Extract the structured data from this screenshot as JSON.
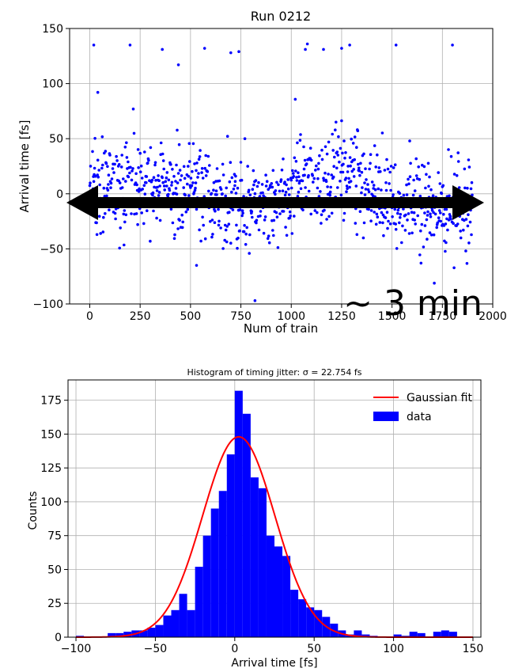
{
  "chart_data": [
    {
      "type": "scatter",
      "title": "Run 0212",
      "xlabel": "Num of train",
      "ylabel": "Arrival time [fs]",
      "xlim": [
        -100,
        2000
      ],
      "ylim": [
        -100,
        150
      ],
      "xticks": [
        0,
        250,
        500,
        750,
        1000,
        1250,
        1500,
        1750,
        2000
      ],
      "xtick_labels": [
        "0",
        "250",
        "500",
        "750",
        "1000",
        "1250",
        "1500",
        "1750",
        "2000"
      ],
      "yticks": [
        -100,
        -50,
        0,
        50,
        100,
        150
      ],
      "ytick_labels": [
        "−100",
        "−50",
        "0",
        "50",
        "100",
        "150"
      ],
      "grid": true,
      "marker_color": "#0000ff",
      "n_points": 1900,
      "outliers": [
        {
          "x": 20,
          "y": 135
        },
        {
          "x": 200,
          "y": 135
        },
        {
          "x": 360,
          "y": 131
        },
        {
          "x": 570,
          "y": 132
        },
        {
          "x": 700,
          "y": 128
        },
        {
          "x": 740,
          "y": 129
        },
        {
          "x": 1070,
          "y": 131
        },
        {
          "x": 1080,
          "y": 136
        },
        {
          "x": 1160,
          "y": 131
        },
        {
          "x": 1250,
          "y": 132
        },
        {
          "x": 1290,
          "y": 135
        },
        {
          "x": 1520,
          "y": 135
        },
        {
          "x": 1800,
          "y": 135
        },
        {
          "x": 40,
          "y": 92
        },
        {
          "x": 440,
          "y": 117
        },
        {
          "x": 820,
          "y": -97
        },
        {
          "x": 530,
          "y": -65
        }
      ],
      "annotation": {
        "text": "~ 3 min",
        "arrow": "double-headed horizontal at y = 0",
        "arrow_color": "#000000"
      }
    },
    {
      "type": "histogram",
      "title": "Histogram of timing jitter: σ = 22.754 fs",
      "xlabel": "Arrival time [fs]",
      "ylabel": "Counts",
      "xlim": [
        -105,
        155
      ],
      "ylim": [
        0,
        190
      ],
      "xticks": [
        -100,
        -50,
        0,
        50,
        100,
        150
      ],
      "xtick_labels": [
        "−100",
        "−50",
        "0",
        "50",
        "100",
        "150"
      ],
      "yticks": [
        0,
        25,
        50,
        75,
        100,
        125,
        150,
        175
      ],
      "ytick_labels": [
        "0",
        "25",
        "50",
        "75",
        "100",
        "125",
        "150",
        "175"
      ],
      "grid": true,
      "legend": {
        "position": "top-right",
        "entries": [
          "Gaussian fit",
          "data"
        ]
      },
      "bin_width": 5,
      "bins": [
        -100,
        -95,
        -90,
        -85,
        -80,
        -75,
        -70,
        -65,
        -60,
        -55,
        -50,
        -45,
        -40,
        -35,
        -30,
        -25,
        -20,
        -15,
        -10,
        -5,
        0,
        5,
        10,
        15,
        20,
        25,
        30,
        35,
        40,
        45,
        50,
        55,
        60,
        65,
        70,
        75,
        80,
        85,
        90,
        95,
        100,
        105,
        110,
        115,
        120,
        125,
        130,
        135,
        140,
        145
      ],
      "counts": [
        1,
        0,
        0,
        0,
        3,
        3,
        4,
        5,
        5,
        7,
        9,
        16,
        20,
        32,
        20,
        52,
        75,
        95,
        108,
        135,
        182,
        165,
        118,
        110,
        75,
        67,
        60,
        35,
        28,
        22,
        20,
        15,
        10,
        5,
        2,
        5,
        2,
        1,
        0,
        0,
        2,
        1,
        4,
        3,
        0,
        4,
        5,
        4,
        0,
        0
      ],
      "series": [
        {
          "name": "data",
          "color": "#0000ff"
        },
        {
          "name": "Gaussian fit",
          "color": "#ff0000",
          "mu": 2.5,
          "sigma": 22.754,
          "amplitude": 148
        }
      ]
    }
  ]
}
